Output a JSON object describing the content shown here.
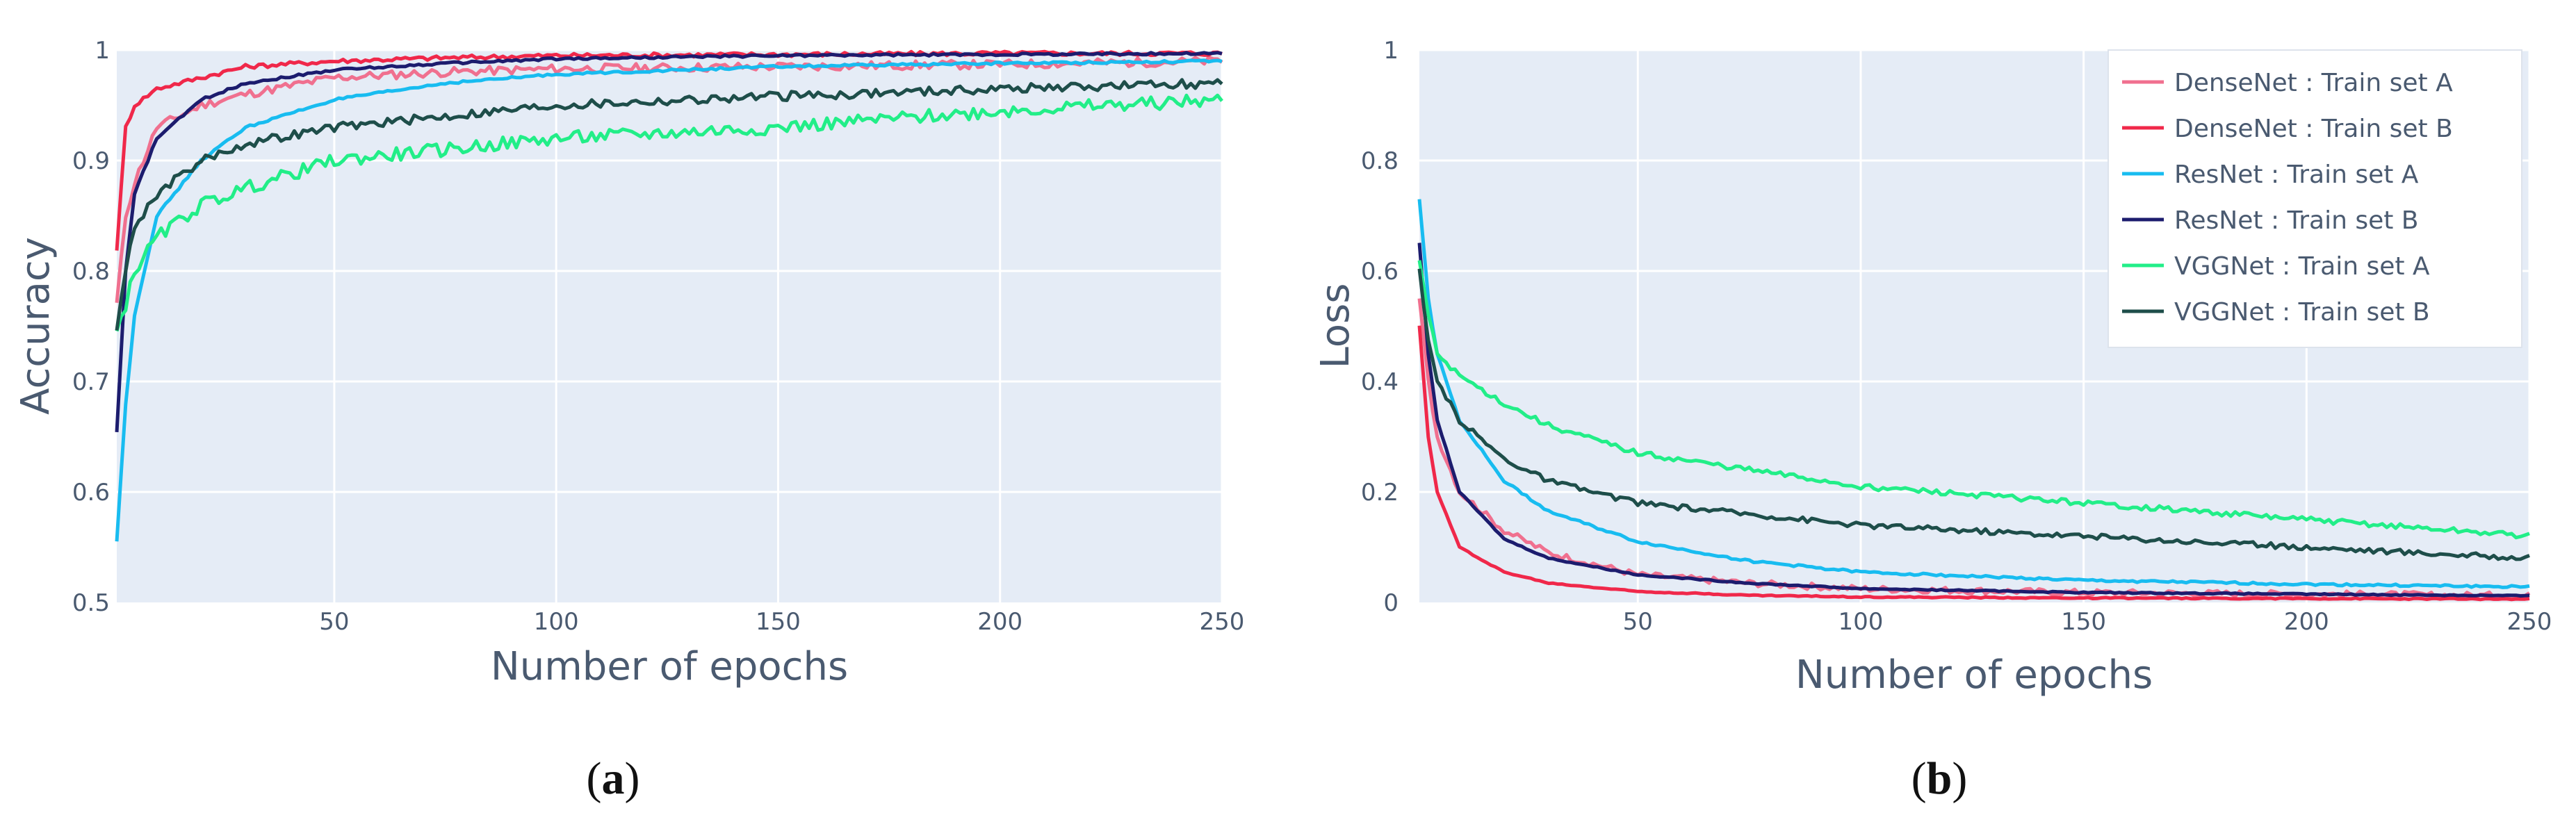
{
  "figure": {
    "captions": [
      {
        "open": "(",
        "letter": "a",
        "close": ")"
      },
      {
        "open": "(",
        "letter": "b",
        "close": ")"
      }
    ]
  },
  "chart_data": [
    {
      "type": "line",
      "panel": "a",
      "xlabel": "Number of epochs",
      "ylabel": "Accuracy",
      "xlim": [
        1,
        250
      ],
      "ylim": [
        0.5,
        1.0
      ],
      "xticks": [
        50,
        100,
        150,
        200,
        250
      ],
      "yticks": [
        0.5,
        0.6,
        0.7,
        0.8,
        0.9,
        1
      ],
      "ytick_labels": [
        "0.5",
        "0.6",
        "0.7",
        "0.8",
        "0.9",
        "1"
      ],
      "grid": true,
      "series": [
        {
          "name": "DenseNet : Train set A",
          "color": "#f0708f",
          "points": [
            [
              1,
              0.77
            ],
            [
              3,
              0.85
            ],
            [
              5,
              0.88
            ],
            [
              10,
              0.93
            ],
            [
              20,
              0.95
            ],
            [
              30,
              0.96
            ],
            [
              50,
              0.975
            ],
            [
              75,
              0.98
            ],
            [
              100,
              0.983
            ],
            [
              150,
              0.985
            ],
            [
              200,
              0.987
            ],
            [
              250,
              0.99
            ]
          ],
          "noise": 0.004
        },
        {
          "name": "DenseNet : Train set B",
          "color": "#f0284a",
          "points": [
            [
              1,
              0.82
            ],
            [
              3,
              0.93
            ],
            [
              5,
              0.95
            ],
            [
              10,
              0.965
            ],
            [
              20,
              0.975
            ],
            [
              30,
              0.985
            ],
            [
              50,
              0.99
            ],
            [
              75,
              0.993
            ],
            [
              100,
              0.995
            ],
            [
              150,
              0.996
            ],
            [
              200,
              0.997
            ],
            [
              250,
              0.997
            ]
          ],
          "noise": 0.002
        },
        {
          "name": "ResNet : Train set A",
          "color": "#18bcf0",
          "points": [
            [
              1,
              0.555
            ],
            [
              3,
              0.68
            ],
            [
              5,
              0.76
            ],
            [
              10,
              0.85
            ],
            [
              20,
              0.9
            ],
            [
              30,
              0.93
            ],
            [
              50,
              0.955
            ],
            [
              75,
              0.97
            ],
            [
              100,
              0.978
            ],
            [
              150,
              0.985
            ],
            [
              200,
              0.988
            ],
            [
              250,
              0.99
            ]
          ],
          "noise": 0.001
        },
        {
          "name": "ResNet : Train set B",
          "color": "#1c1c6e",
          "points": [
            [
              1,
              0.655
            ],
            [
              3,
              0.8
            ],
            [
              5,
              0.87
            ],
            [
              10,
              0.92
            ],
            [
              20,
              0.955
            ],
            [
              30,
              0.97
            ],
            [
              50,
              0.982
            ],
            [
              75,
              0.988
            ],
            [
              100,
              0.992
            ],
            [
              150,
              0.995
            ],
            [
              200,
              0.996
            ],
            [
              250,
              0.997
            ]
          ],
          "noise": 0.001
        },
        {
          "name": "VGGNet : Train set A",
          "color": "#22ee88",
          "points": [
            [
              1,
              0.745
            ],
            [
              3,
              0.77
            ],
            [
              5,
              0.8
            ],
            [
              10,
              0.83
            ],
            [
              20,
              0.86
            ],
            [
              30,
              0.875
            ],
            [
              50,
              0.9
            ],
            [
              75,
              0.91
            ],
            [
              100,
              0.92
            ],
            [
              150,
              0.93
            ],
            [
              200,
              0.945
            ],
            [
              250,
              0.955
            ]
          ],
          "noise": 0.006
        },
        {
          "name": "VGGNet : Train set B",
          "color": "#1e4e4a",
          "points": [
            [
              1,
              0.75
            ],
            [
              3,
              0.8
            ],
            [
              5,
              0.84
            ],
            [
              10,
              0.87
            ],
            [
              20,
              0.9
            ],
            [
              30,
              0.915
            ],
            [
              50,
              0.93
            ],
            [
              75,
              0.94
            ],
            [
              100,
              0.95
            ],
            [
              150,
              0.958
            ],
            [
              200,
              0.965
            ],
            [
              250,
              0.97
            ]
          ],
          "noise": 0.004
        }
      ]
    },
    {
      "type": "line",
      "panel": "b",
      "xlabel": "Number of epochs",
      "ylabel": "Loss",
      "xlim": [
        1,
        250
      ],
      "ylim": [
        0,
        1
      ],
      "xticks": [
        50,
        100,
        150,
        200,
        250
      ],
      "yticks": [
        0,
        0.2,
        0.4,
        0.6,
        0.8,
        1
      ],
      "ytick_labels": [
        "0",
        "0.2",
        "0.4",
        "0.6",
        "0.8",
        "1"
      ],
      "grid": true,
      "legend_position": "top-right",
      "series": [
        {
          "name": "DenseNet : Train set A",
          "color": "#f0708f",
          "points": [
            [
              1,
              0.55
            ],
            [
              3,
              0.4
            ],
            [
              5,
              0.3
            ],
            [
              10,
              0.2
            ],
            [
              20,
              0.13
            ],
            [
              30,
              0.09
            ],
            [
              50,
              0.05
            ],
            [
              75,
              0.035
            ],
            [
              100,
              0.025
            ],
            [
              150,
              0.018
            ],
            [
              200,
              0.015
            ],
            [
              250,
              0.012
            ]
          ],
          "noise": 0.006
        },
        {
          "name": "DenseNet : Train set B",
          "color": "#f0284a",
          "points": [
            [
              1,
              0.5
            ],
            [
              3,
              0.3
            ],
            [
              5,
              0.2
            ],
            [
              10,
              0.1
            ],
            [
              20,
              0.055
            ],
            [
              30,
              0.035
            ],
            [
              50,
              0.02
            ],
            [
              75,
              0.013
            ],
            [
              100,
              0.01
            ],
            [
              150,
              0.008
            ],
            [
              200,
              0.007
            ],
            [
              250,
              0.006
            ]
          ],
          "noise": 0.001
        },
        {
          "name": "ResNet : Train set A",
          "color": "#18bcf0",
          "points": [
            [
              1,
              0.73
            ],
            [
              3,
              0.55
            ],
            [
              5,
              0.45
            ],
            [
              10,
              0.33
            ],
            [
              20,
              0.22
            ],
            [
              30,
              0.165
            ],
            [
              50,
              0.11
            ],
            [
              75,
              0.075
            ],
            [
              100,
              0.055
            ],
            [
              150,
              0.04
            ],
            [
              200,
              0.033
            ],
            [
              250,
              0.028
            ]
          ],
          "noise": 0.002
        },
        {
          "name": "ResNet : Train set B",
          "color": "#1c1c6e",
          "points": [
            [
              1,
              0.65
            ],
            [
              3,
              0.45
            ],
            [
              5,
              0.33
            ],
            [
              10,
              0.2
            ],
            [
              20,
              0.115
            ],
            [
              30,
              0.08
            ],
            [
              50,
              0.05
            ],
            [
              75,
              0.035
            ],
            [
              100,
              0.025
            ],
            [
              150,
              0.018
            ],
            [
              200,
              0.015
            ],
            [
              250,
              0.012
            ]
          ],
          "noise": 0.001
        },
        {
          "name": "VGGNet : Train set A",
          "color": "#22ee88",
          "points": [
            [
              1,
              0.62
            ],
            [
              3,
              0.52
            ],
            [
              5,
              0.45
            ],
            [
              10,
              0.41
            ],
            [
              20,
              0.36
            ],
            [
              30,
              0.32
            ],
            [
              50,
              0.27
            ],
            [
              75,
              0.24
            ],
            [
              100,
              0.21
            ],
            [
              150,
              0.18
            ],
            [
              200,
              0.15
            ],
            [
              250,
              0.12
            ]
          ],
          "noise": 0.005
        },
        {
          "name": "VGGNet : Train set B",
          "color": "#1e4e4a",
          "points": [
            [
              1,
              0.6
            ],
            [
              3,
              0.47
            ],
            [
              5,
              0.4
            ],
            [
              10,
              0.33
            ],
            [
              20,
              0.26
            ],
            [
              30,
              0.22
            ],
            [
              50,
              0.18
            ],
            [
              75,
              0.16
            ],
            [
              100,
              0.14
            ],
            [
              150,
              0.12
            ],
            [
              200,
              0.1
            ],
            [
              250,
              0.08
            ]
          ],
          "noise": 0.005
        }
      ]
    }
  ]
}
